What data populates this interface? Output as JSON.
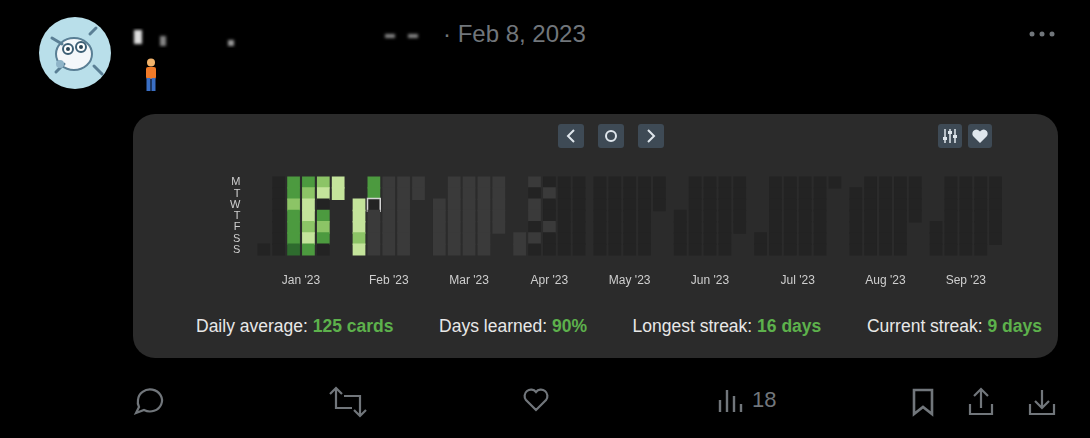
{
  "post": {
    "date": "· Feb 8, 2023",
    "views": "18"
  },
  "chart_data": {
    "type": "heatmap",
    "weekdays": [
      "M",
      "T",
      "W",
      "T",
      "F",
      "S",
      "S"
    ],
    "colors": [
      "#232323",
      "#2e6b2e",
      "#4c9a3f",
      "#8cc466",
      "#c4e49b",
      "#3a3a3a"
    ],
    "grid": false,
    "months": [
      {
        "label": "Jan '23",
        "cells": [
          [
            null,
            null,
            null,
            null,
            null,
            null,
            0
          ],
          [
            0,
            0,
            0,
            0,
            0,
            0,
            0
          ],
          [
            2,
            2,
            3,
            2,
            2,
            2,
            1
          ],
          [
            2,
            3,
            4,
            4,
            3,
            4,
            2
          ],
          [
            3,
            4,
            0,
            2,
            3,
            2,
            0
          ],
          [
            4,
            4,
            null,
            null,
            null,
            null,
            null
          ]
        ]
      },
      {
        "label": "Feb '23",
        "cells": [
          [
            null,
            null,
            4,
            4,
            4,
            3,
            4
          ],
          [
            2,
            2,
            0,
            5,
            5,
            5,
            5
          ],
          [
            5,
            5,
            5,
            5,
            5,
            5,
            5
          ],
          [
            5,
            5,
            5,
            5,
            5,
            5,
            5
          ],
          [
            5,
            5,
            null,
            null,
            null,
            null,
            null
          ]
        ]
      },
      {
        "label": "Mar '23",
        "cells": [
          [
            null,
            null,
            5,
            5,
            5,
            5,
            5
          ],
          [
            5,
            5,
            5,
            5,
            5,
            5,
            5
          ],
          [
            5,
            5,
            5,
            5,
            5,
            5,
            5
          ],
          [
            5,
            5,
            5,
            5,
            5,
            5,
            5
          ],
          [
            5,
            5,
            5,
            5,
            5,
            null,
            null
          ]
        ]
      },
      {
        "label": "Apr '23",
        "cells": [
          [
            null,
            null,
            null,
            null,
            null,
            5,
            5
          ],
          [
            5,
            0,
            5,
            5,
            0,
            5,
            0
          ],
          [
            0,
            5,
            0,
            0,
            5,
            0,
            0
          ],
          [
            0,
            0,
            0,
            0,
            0,
            0,
            0
          ],
          [
            0,
            0,
            0,
            0,
            0,
            0,
            0
          ]
        ]
      },
      {
        "label": "May '23",
        "cells": [
          [
            0,
            0,
            0,
            0,
            0,
            0,
            0
          ],
          [
            0,
            0,
            0,
            0,
            0,
            0,
            0
          ],
          [
            0,
            0,
            0,
            0,
            0,
            0,
            0
          ],
          [
            0,
            0,
            0,
            0,
            0,
            0,
            0
          ],
          [
            0,
            0,
            0,
            null,
            null,
            null,
            null
          ]
        ]
      },
      {
        "label": "Jun '23",
        "cells": [
          [
            null,
            null,
            null,
            0,
            0,
            0,
            0
          ],
          [
            0,
            0,
            0,
            0,
            0,
            0,
            0
          ],
          [
            0,
            0,
            0,
            0,
            0,
            0,
            0
          ],
          [
            0,
            0,
            0,
            0,
            0,
            0,
            0
          ],
          [
            0,
            0,
            0,
            0,
            0,
            null,
            null
          ]
        ]
      },
      {
        "label": "Jul '23",
        "cells": [
          [
            null,
            null,
            null,
            null,
            null,
            0,
            0
          ],
          [
            0,
            0,
            0,
            0,
            0,
            0,
            0
          ],
          [
            0,
            0,
            0,
            0,
            0,
            0,
            0
          ],
          [
            0,
            0,
            0,
            0,
            0,
            0,
            0
          ],
          [
            0,
            0,
            0,
            0,
            0,
            0,
            0
          ],
          [
            0,
            null,
            null,
            null,
            null,
            null,
            null
          ]
        ]
      },
      {
        "label": "Aug '23",
        "cells": [
          [
            null,
            0,
            0,
            0,
            0,
            0,
            0
          ],
          [
            0,
            0,
            0,
            0,
            0,
            0,
            0
          ],
          [
            0,
            0,
            0,
            0,
            0,
            0,
            0
          ],
          [
            0,
            0,
            0,
            0,
            0,
            0,
            0
          ],
          [
            0,
            0,
            0,
            0,
            null,
            null,
            null
          ]
        ]
      },
      {
        "label": "Sep '23",
        "cells": [
          [
            null,
            null,
            null,
            null,
            0,
            0,
            0
          ],
          [
            0,
            0,
            0,
            0,
            0,
            0,
            0
          ],
          [
            0,
            0,
            0,
            0,
            0,
            0,
            0
          ],
          [
            0,
            0,
            0,
            0,
            0,
            0,
            0
          ],
          [
            0,
            0,
            0,
            0,
            0,
            0,
            null
          ]
        ]
      }
    ],
    "highlight": {
      "month": "Feb '23",
      "column": 1,
      "weekday": 2
    }
  },
  "stats": [
    {
      "label": "Daily average:",
      "value": "125 cards"
    },
    {
      "label": "Days learned:",
      "value": "90%"
    },
    {
      "label": "Longest streak:",
      "value": "16 days"
    },
    {
      "label": "Current streak:",
      "value": "9 days"
    }
  ]
}
